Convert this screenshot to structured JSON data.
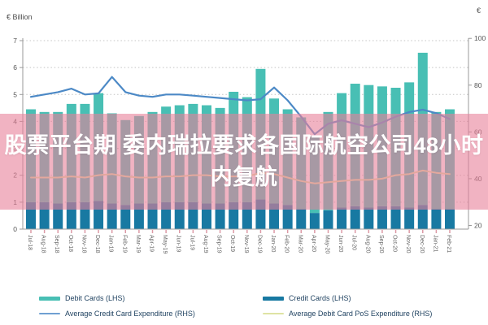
{
  "header": {
    "left_axis_unit": "€ Billion",
    "right_axis_unit": "€"
  },
  "overlay": {
    "band_color": "rgba(232,129,153,0.6)",
    "text_color": "#ffffff",
    "full_title": "股票平台期 委内瑞拉要求各国际航空公司48小时内复航",
    "line1": "股票平台期 委内瑞拉要求各国际航空公司48小时",
    "line2": "内复航"
  },
  "legend": {
    "items": [
      {
        "label": "Debit Cards (LHS)",
        "color": "#48bfb4",
        "shape": "bar"
      },
      {
        "label": "Credit Cards (LHS)",
        "color": "#1879a2",
        "shape": "bar"
      },
      {
        "label": "Average Credit Card Expenditure (RHS)",
        "color": "#6fa0d2",
        "shape": "line"
      },
      {
        "label": "Average Debit Card PoS Expenditure (RHS)",
        "color": "#dfe3a3",
        "shape": "line"
      }
    ]
  },
  "chart_data": {
    "type": "bar",
    "title": "",
    "xlabel": "",
    "ylabel_left": "€ Billion",
    "ylabel_right": "€",
    "grid": "dotted-horizontal",
    "left_axis": {
      "min": 0,
      "max": 7,
      "ticks": [
        0,
        1,
        2,
        3,
        4,
        5,
        6,
        7
      ]
    },
    "right_axis": {
      "min": 20,
      "max": 100,
      "ticks": [
        20,
        40,
        60,
        80,
        100
      ]
    },
    "categories": [
      "Jul-18",
      "Aug-18",
      "Sep-18",
      "Oct-18",
      "Nov-18",
      "Dec-18",
      "Jan-19",
      "Feb-19",
      "Mar-19",
      "Apr-19",
      "May-19",
      "Jun-19",
      "Jul-19",
      "Aug-19",
      "Sep-19",
      "Oct-19",
      "Nov-19",
      "Dec-19",
      "Jan-20",
      "Feb-20",
      "Mar-20",
      "Apr-20",
      "May-20",
      "Jun-20",
      "Jul-20",
      "Aug-20",
      "Sep-20",
      "Oct-20",
      "Nov-20",
      "Dec-20",
      "Jan-21",
      "Feb-21"
    ],
    "series": [
      {
        "name": "Credit Cards (LHS)",
        "type": "bar",
        "stack": "cards",
        "axis": "left",
        "color": "#1879a2",
        "values": [
          1.0,
          1.0,
          0.95,
          1.0,
          1.0,
          1.05,
          0.95,
          0.9,
          0.95,
          0.95,
          1.0,
          1.0,
          1.0,
          0.95,
          0.95,
          1.0,
          1.0,
          1.1,
          0.95,
          0.9,
          0.75,
          0.6,
          0.7,
          0.8,
          0.85,
          0.8,
          0.85,
          0.85,
          0.8,
          0.9,
          0.75,
          0.75
        ]
      },
      {
        "name": "Debit Cards (LHS)",
        "type": "bar",
        "stack": "cards",
        "axis": "left",
        "color": "#48bfb4",
        "values": [
          3.45,
          3.35,
          3.4,
          3.65,
          3.65,
          4.0,
          3.35,
          3.15,
          3.25,
          3.4,
          3.55,
          3.6,
          3.65,
          3.65,
          3.55,
          4.1,
          3.9,
          4.85,
          3.9,
          3.55,
          3.4,
          2.85,
          3.65,
          4.25,
          4.55,
          4.55,
          4.45,
          4.4,
          4.65,
          5.65,
          3.6,
          3.7
        ]
      },
      {
        "name": "Average Credit Card Expenditure (RHS)",
        "type": "line",
        "axis": "right",
        "color": "#4c89c6",
        "values": [
          75,
          76,
          77,
          78.5,
          76,
          76.5,
          83.5,
          77,
          75.5,
          75,
          76,
          76,
          75.5,
          75,
          74.5,
          74,
          73.5,
          74,
          79,
          73.5,
          66.5,
          59,
          63.5,
          65,
          63.5,
          62,
          64,
          66.5,
          68.5,
          69.5,
          68,
          65.5
        ]
      },
      {
        "name": "Average Debit Card PoS Expenditure (RHS)",
        "type": "line",
        "axis": "right",
        "color": "#dfe3a3",
        "values": [
          40.5,
          40.5,
          40.5,
          41,
          40.5,
          41.5,
          42,
          41,
          40.5,
          40.5,
          41,
          41,
          41.5,
          41.5,
          41,
          41,
          41,
          42.5,
          42,
          40.5,
          39,
          38,
          38.5,
          39,
          39.5,
          39.5,
          40,
          41.5,
          42,
          43.5,
          42.5,
          42
        ]
      }
    ]
  }
}
